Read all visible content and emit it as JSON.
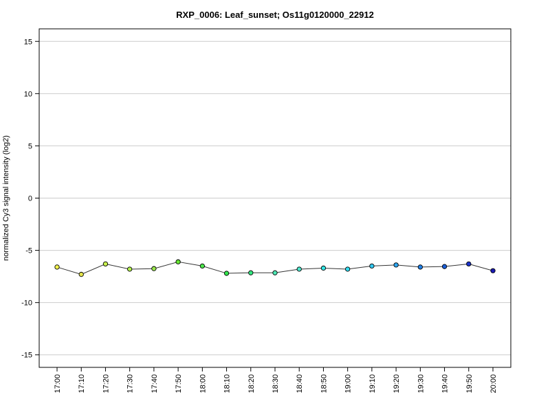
{
  "chart_data": {
    "type": "line",
    "title": "RXP_0006: Leaf_sunset; Os11g0120000_22912",
    "xlabel": "",
    "ylabel": "normalized Cy3 signal intensity (log2)",
    "ylim": [
      -16.2,
      16.2
    ],
    "y_ticks": [
      -15,
      -10,
      -5,
      0,
      5,
      10,
      15
    ],
    "grid": true,
    "grid_color": "#cccccc",
    "line_color": "#333333",
    "categories": [
      "17:00",
      "17:10",
      "17:20",
      "17:30",
      "17:40",
      "17:50",
      "18:00",
      "18:10",
      "18:20",
      "18:30",
      "18:40",
      "18:50",
      "19:00",
      "19:10",
      "19:20",
      "19:30",
      "19:40",
      "19:50",
      "20:00"
    ],
    "values": [
      -6.6,
      -7.3,
      -6.3,
      -6.8,
      -6.75,
      -6.1,
      -6.5,
      -7.2,
      -7.15,
      -7.15,
      -6.8,
      -6.7,
      -6.8,
      -6.5,
      -6.4,
      -6.6,
      -6.55,
      -6.3,
      -6.95
    ],
    "point_colors": [
      "#f2f24d",
      "#e6e64d",
      "#c8f04d",
      "#b3f04d",
      "#9ae64d",
      "#66e633",
      "#4de64d",
      "#33e64d",
      "#33e680",
      "#4de6b3",
      "#4de6cc",
      "#33e6e6",
      "#33dcf0",
      "#33c8f0",
      "#2ea6f0",
      "#1f7fe6",
      "#1a5fd9",
      "#1a33cc",
      "#1a1ab3"
    ]
  }
}
